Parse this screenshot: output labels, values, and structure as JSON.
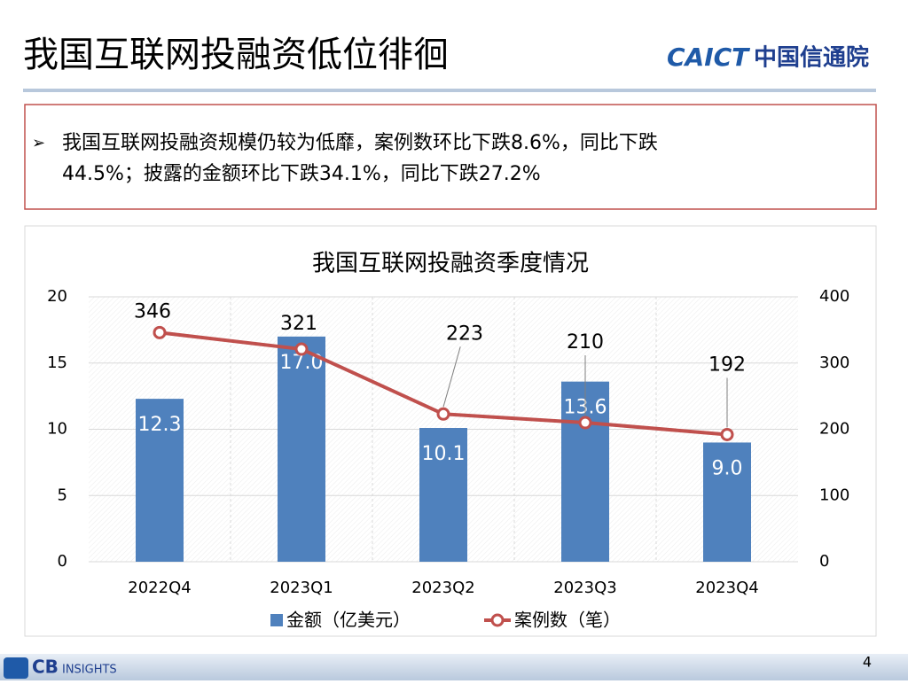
{
  "header": {
    "title": "我国互联网投融资低位徘徊",
    "logo": {
      "brand": "CAICT",
      "name": "中国信通院"
    }
  },
  "summary": {
    "lines": [
      "我国互联网投融资规模仍较为低靡，案例数环比下跌8.6%，同比下跌",
      "44.5%；披露的金额环比下跌34.1%，同比下跌27.2%"
    ]
  },
  "chart_data": {
    "type": "bar",
    "title": "我国互联网投融资季度情况",
    "categories": [
      "2022Q4",
      "2023Q1",
      "2023Q2",
      "2023Q3",
      "2023Q4"
    ],
    "series": [
      {
        "name": "金额（亿美元）",
        "type": "bar",
        "color": "#4f81bd",
        "values": [
          12.3,
          17.0,
          10.1,
          13.6,
          9.0
        ],
        "value_labels": [
          "12.3",
          "17.0",
          "10.1",
          "13.6",
          "9.0"
        ]
      },
      {
        "name": "案例数（笔）",
        "type": "line",
        "axis": "y2",
        "color": "#c0504d",
        "values": [
          346,
          321,
          223,
          210,
          192
        ]
      }
    ],
    "ylim": [
      0,
      20
    ],
    "yticks": [
      0,
      5,
      10,
      15,
      20
    ],
    "y2lim": [
      0,
      400
    ],
    "y2ticks": [
      0,
      100,
      200,
      300,
      400
    ],
    "grid": true,
    "legend": "bottom"
  },
  "footer": {
    "source_logo": {
      "brand": "CB",
      "name": "INSIGHTS"
    },
    "page": "4"
  }
}
